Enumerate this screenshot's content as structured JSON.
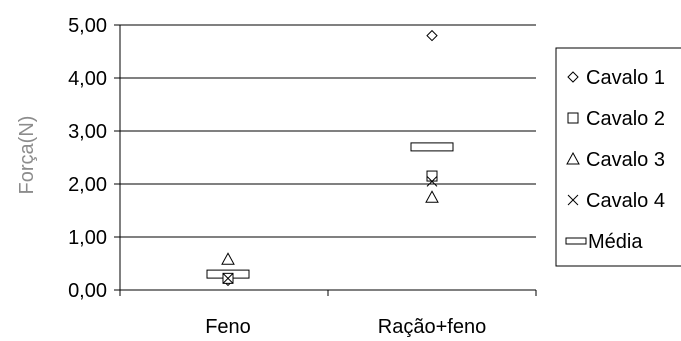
{
  "chart_data": {
    "type": "scatter",
    "title": "",
    "xlabel": "",
    "ylabel": "Força(N)",
    "ylim": [
      0,
      5
    ],
    "yticks": [
      "0,00",
      "1,00",
      "2,00",
      "3,00",
      "4,00",
      "5,00"
    ],
    "categories": [
      "Feno",
      "Ração+feno"
    ],
    "grid": "horizontal",
    "legend_position": "right",
    "series": [
      {
        "name": "Cavalo 1",
        "marker": "diamond",
        "values": [
          0.18,
          4.8
        ]
      },
      {
        "name": "Cavalo 2",
        "marker": "square",
        "values": [
          0.22,
          2.15
        ]
      },
      {
        "name": "Cavalo 3",
        "marker": "triangle",
        "values": [
          0.58,
          1.75
        ]
      },
      {
        "name": "Cavalo 4",
        "marker": "x",
        "values": [
          0.22,
          2.05
        ]
      },
      {
        "name": "Média",
        "marker": "bar",
        "values": [
          0.3,
          2.7
        ]
      }
    ]
  }
}
